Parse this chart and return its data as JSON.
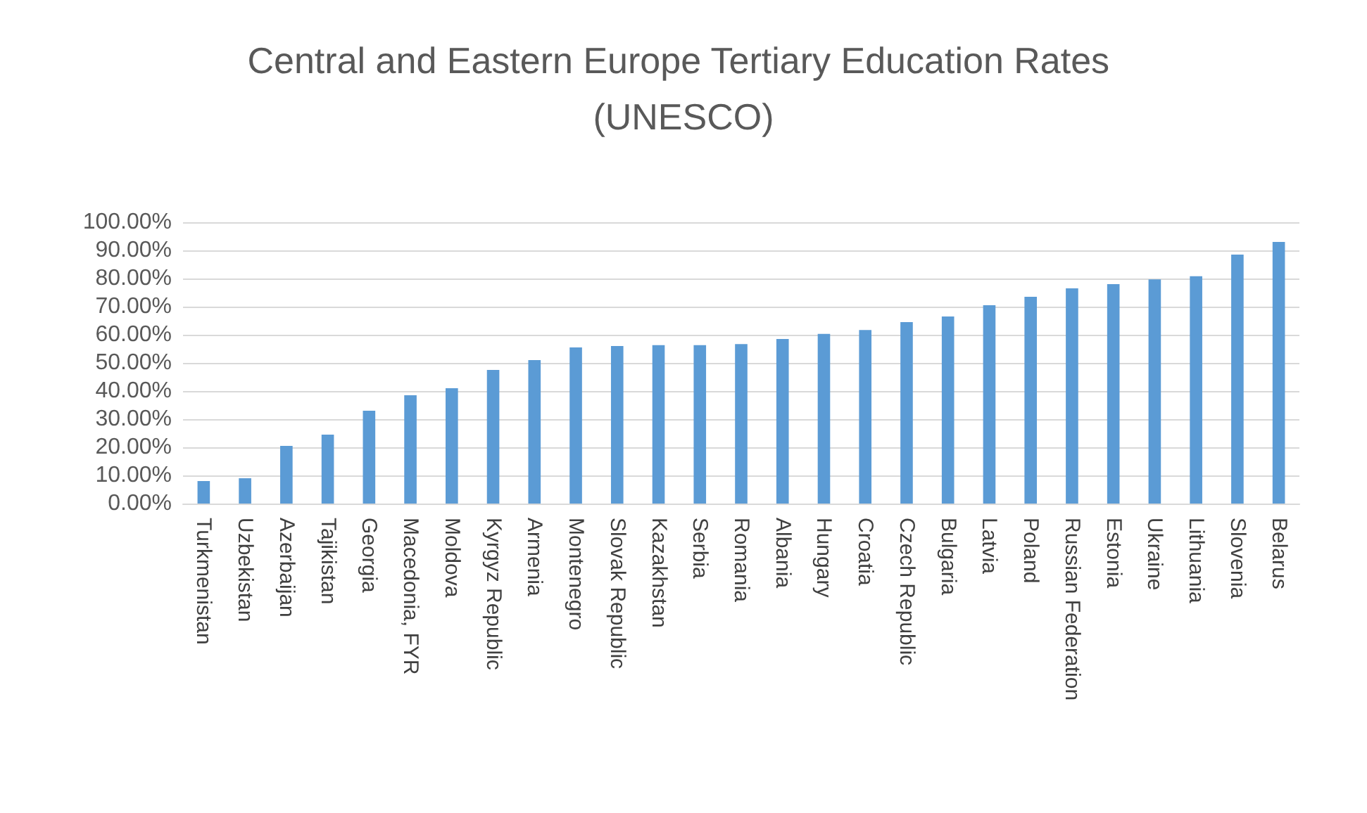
{
  "chart_data": {
    "type": "bar",
    "title": "Central and Eastern Europe Tertiary Education Rates (UNESCO)",
    "categories": [
      "Turkmenistan",
      "Uzbekistan",
      "Azerbaijan",
      "Tajikistan",
      "Georgia",
      "Macedonia, FYR",
      "Moldova",
      "Kyrgyz Republic",
      "Armenia",
      "Montenegro",
      "Slovak Republic",
      "Kazakhstan",
      "Serbia",
      "Romania",
      "Albania",
      "Hungary",
      "Croatia",
      "Czech Republic",
      "Bulgaria",
      "Latvia",
      "Poland",
      "Russian Federation",
      "Estonia",
      "Ukraine",
      "Lithuania",
      "Slovenia",
      "Belarus"
    ],
    "values": [
      8,
      9,
      20.5,
      24.5,
      33,
      38.5,
      41,
      47.5,
      51,
      55.5,
      56,
      56.3,
      56.3,
      56.7,
      58.5,
      60.3,
      61.7,
      64.5,
      66.5,
      70.5,
      73.5,
      76.5,
      78,
      79.7,
      80.8,
      88.5,
      93
    ],
    "color": "#5b9bd5",
    "ylim": [
      0,
      100
    ],
    "yticks": [
      {
        "value": 0,
        "label": "0.00%"
      },
      {
        "value": 10,
        "label": "10.00%"
      },
      {
        "value": 20,
        "label": "20.00%"
      },
      {
        "value": 30,
        "label": "30.00%"
      },
      {
        "value": 40,
        "label": "40.00%"
      },
      {
        "value": 50,
        "label": "50.00%"
      },
      {
        "value": 60,
        "label": "60.00%"
      },
      {
        "value": 70,
        "label": "70.00%"
      },
      {
        "value": 80,
        "label": "80.00%"
      },
      {
        "value": 90,
        "label": "90.00%"
      },
      {
        "value": 100,
        "label": "100.00%"
      }
    ],
    "grid": true
  }
}
